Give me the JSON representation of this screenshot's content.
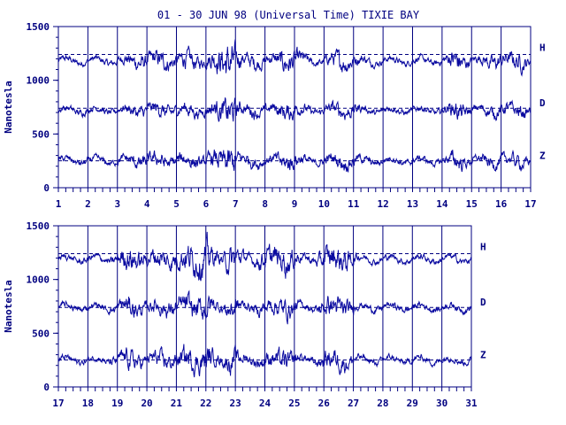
{
  "title": "01 - 30 JUN 98 (Universal Time) TIXIE BAY",
  "colors": {
    "trace": "#0a0aa0",
    "axis": "#000080",
    "background": "#ffffff"
  },
  "chart_data": [
    {
      "type": "line",
      "name": "panel-1",
      "ylabel": "Nanotesla",
      "xlim": [
        1,
        17
      ],
      "ylim": [
        0,
        1500
      ],
      "x_ticks": [
        "1",
        "2",
        "3",
        "4",
        "5",
        "6",
        "7",
        "8",
        "9",
        "10",
        "11",
        "12",
        "13",
        "14",
        "15",
        "16",
        "17"
      ],
      "y_ticks": [
        "0",
        "500",
        "1000",
        "1500"
      ],
      "grid": "vertical day lines",
      "series": [
        {
          "name": "H",
          "baseline": 1240,
          "level": 1180
        },
        {
          "name": "D",
          "baseline": 740,
          "level": 720
        },
        {
          "name": "Z",
          "baseline": 250,
          "level": 250
        }
      ]
    },
    {
      "type": "line",
      "name": "panel-2",
      "ylabel": "Nanotesla",
      "xlim": [
        17,
        31
      ],
      "ylim": [
        0,
        1500
      ],
      "x_ticks": [
        "17",
        "18",
        "19",
        "20",
        "21",
        "22",
        "23",
        "24",
        "25",
        "26",
        "27",
        "28",
        "29",
        "30",
        "31"
      ],
      "y_ticks": [
        "0",
        "500",
        "1000",
        "1500"
      ],
      "grid": "vertical day lines",
      "series": [
        {
          "name": "H",
          "baseline": 1240,
          "level": 1190
        },
        {
          "name": "D",
          "baseline": 740,
          "level": 740
        },
        {
          "name": "Z",
          "baseline": 250,
          "level": 250
        }
      ]
    }
  ]
}
